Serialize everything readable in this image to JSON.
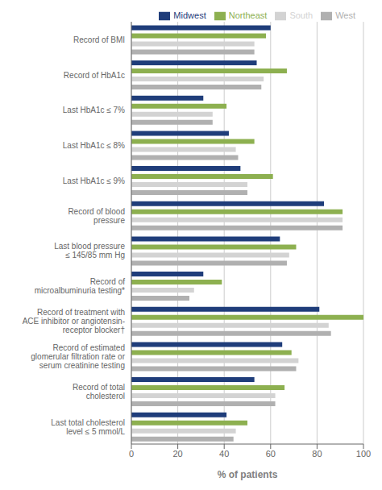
{
  "chart_data": {
    "type": "bar",
    "orientation": "horizontal",
    "xlabel": "% of patients",
    "categories": [
      "Record of BMI",
      "Record of HbA1c",
      "Last HbA1c ≤ 7%",
      "Last HbA1c ≤ 8%",
      "Last HbA1c ≤ 9%",
      "Record of blood\npressure",
      "Last blood pressure\n≤ 145/85 mm Hg",
      "Record of\nmicroalbuminuria testing*",
      "Record of treatment with\nACE inhibitor or angiotensin-\nreceptor blocker†",
      "Record of estimated\nglomerular filtration rate or\nserum creatinine testing",
      "Record of total\ncholesterol",
      "Last total cholesterol\nlevel ≤ 5 mmol/L"
    ],
    "series": [
      {
        "name": "Midwest",
        "color": "#1f3d7a",
        "values": [
          60,
          54,
          31,
          42,
          47,
          83,
          64,
          31,
          81,
          65,
          53,
          41
        ]
      },
      {
        "name": "Northeast",
        "color": "#8db050",
        "values": [
          58,
          67,
          41,
          53,
          61,
          91,
          71,
          39,
          100,
          69,
          66,
          50
        ]
      },
      {
        "name": "South",
        "color": "#d3d3d3",
        "values": [
          53,
          57,
          35,
          45,
          50,
          91,
          68,
          27,
          85,
          72,
          62,
          45
        ]
      },
      {
        "name": "West",
        "color": "#b0b0b0",
        "values": [
          53,
          56,
          35,
          46,
          50,
          91,
          67,
          25,
          86,
          71,
          62,
          44
        ]
      }
    ],
    "xlim": [
      0,
      100
    ],
    "xticks": [
      0,
      20,
      40,
      60,
      80,
      100
    ],
    "grid": true,
    "legend": "upper right"
  }
}
